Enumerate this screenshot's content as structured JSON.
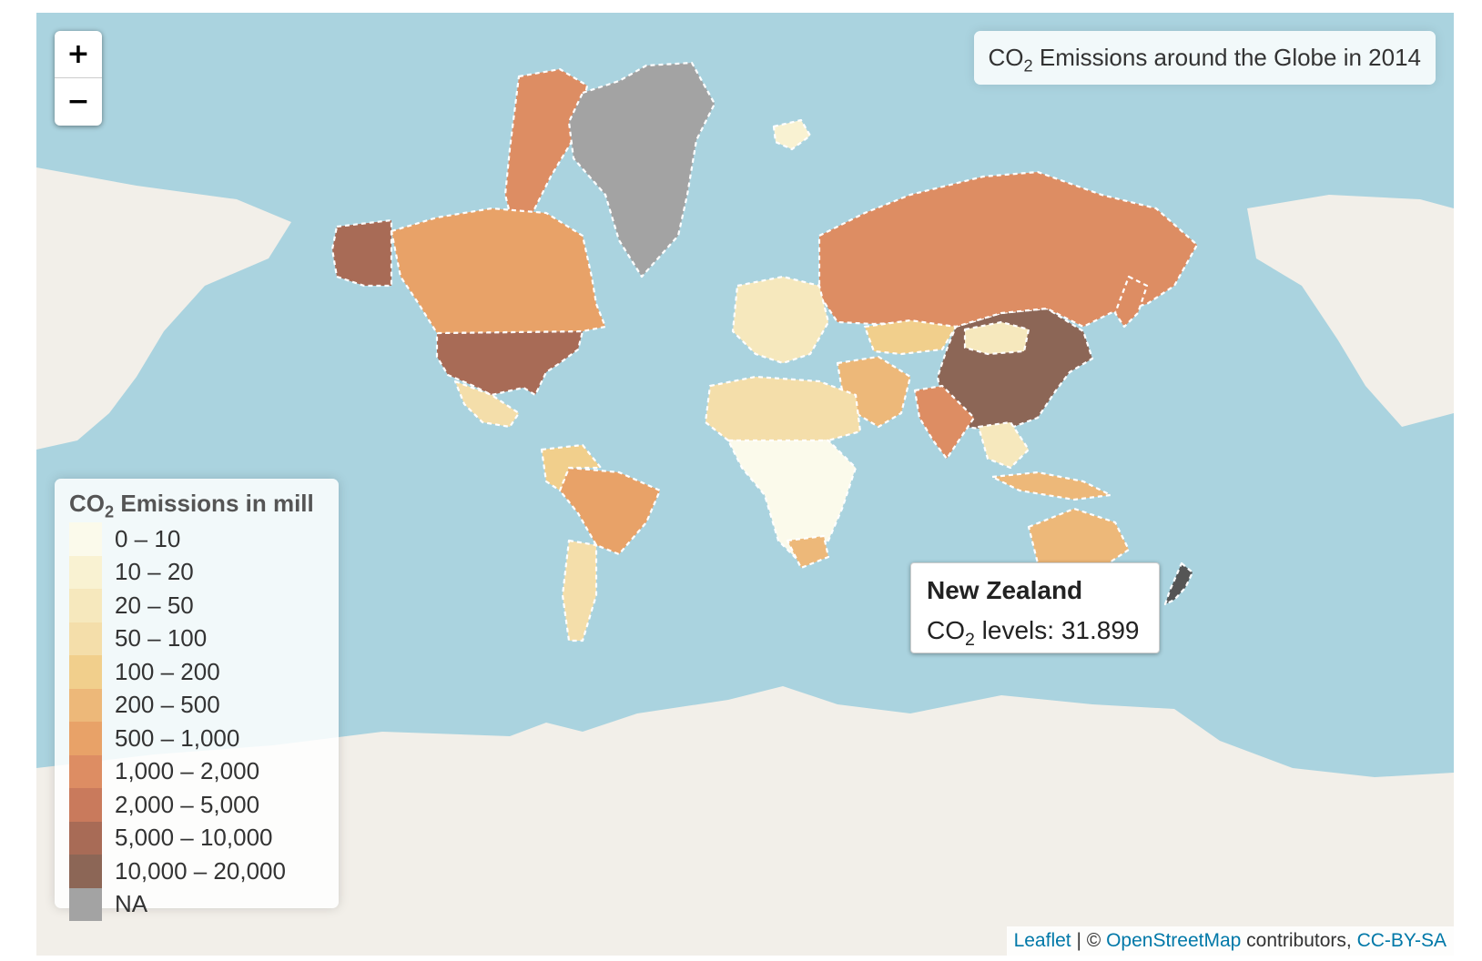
{
  "zoom": {
    "in_label": "+",
    "out_label": "−"
  },
  "title": {
    "prefix": "CO",
    "sub": "2",
    "suffix": " Emissions around the Globe in 2014"
  },
  "legend": {
    "title_prefix": "CO",
    "title_sub": "2",
    "title_suffix": " Emissions in mill",
    "bins": [
      {
        "label": "0 – 10",
        "color": "#fbfaeb"
      },
      {
        "label": "10 – 20",
        "color": "#f9f2d2"
      },
      {
        "label": "20 – 50",
        "color": "#f6e8bd"
      },
      {
        "label": "50 – 100",
        "color": "#f4deaa"
      },
      {
        "label": "100 – 200",
        "color": "#f1cf8c"
      },
      {
        "label": "200 – 500",
        "color": "#edb879"
      },
      {
        "label": "500 – 1,000",
        "color": "#e8a268"
      },
      {
        "label": "1,000 – 2,000",
        "color": "#dd8d63"
      },
      {
        "label": "2,000 – 5,000",
        "color": "#c97a5c"
      },
      {
        "label": "5,000 – 10,000",
        "color": "#a86b56"
      },
      {
        "label": "10,000 – 20,000",
        "color": "#8c6656"
      },
      {
        "label": "NA",
        "color": "#a3a3a3"
      }
    ]
  },
  "tooltip": {
    "country": "New Zealand",
    "value_prefix": "CO",
    "value_sub": "2",
    "value_suffix": " levels: 31.899"
  },
  "attribution": {
    "leaflet": "Leaflet",
    "sep": " | © ",
    "osm": "OpenStreetMap",
    "contributors": " contributors, ",
    "license": "CC-BY-SA"
  },
  "colors": {
    "ocean": "#aad3df",
    "land_unshaded": "#f2efe9",
    "highlight": "#555555"
  }
}
